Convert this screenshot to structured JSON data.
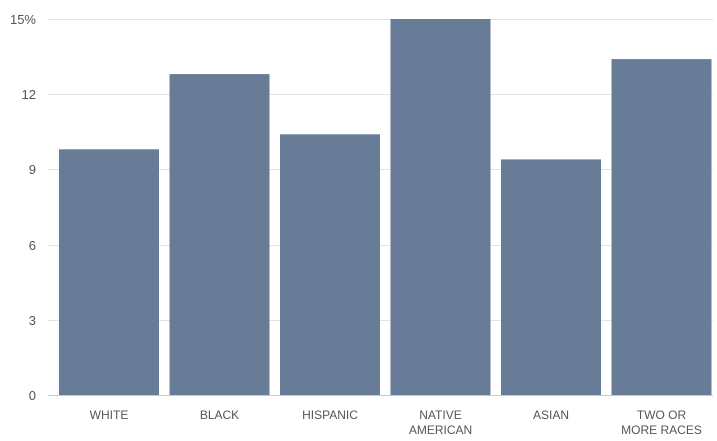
{
  "chart_data": {
    "type": "bar",
    "categories": [
      [
        "WHITE"
      ],
      [
        "BLACK"
      ],
      [
        "HISPANIC"
      ],
      [
        "NATIVE",
        "AMERICAN"
      ],
      [
        "ASIAN"
      ],
      [
        "TWO OR",
        "MORE RACES"
      ]
    ],
    "values": [
      9.8,
      12.8,
      10.4,
      15.0,
      9.4,
      13.4
    ],
    "y_ticks": [
      0,
      3,
      6,
      9,
      12,
      15
    ],
    "y_tick_labels": [
      "0",
      "3",
      "6",
      "9",
      "12",
      "15%"
    ],
    "ylim": [
      0,
      15
    ],
    "grid": true,
    "legend": "none",
    "title": "",
    "xlabel": "",
    "ylabel": "",
    "colors": {
      "bar": "#687c97",
      "grid": "#e3e3e3",
      "text": "#555555"
    }
  }
}
